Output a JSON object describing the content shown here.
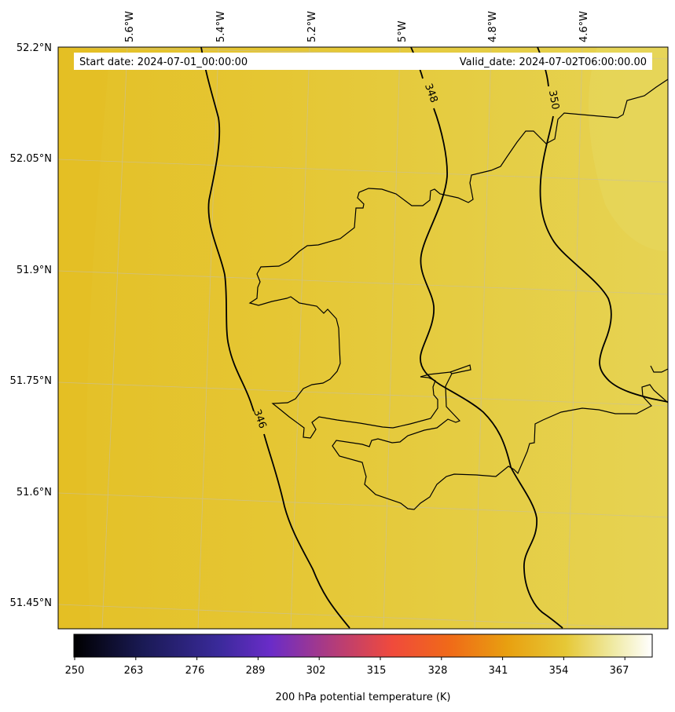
{
  "header": {
    "start_date": "Start date: 2024-07-01_00:00:00",
    "valid_date": "Valid_date: 2024-07-02T06:00:00.00"
  },
  "axes": {
    "lon_ticks": [
      "5.6°W",
      "5.4°W",
      "5.2°W",
      "5°W",
      "4.8°W",
      "4.6°W"
    ],
    "lat_ticks": [
      "52.2°N",
      "52.05°N",
      "51.9°N",
      "51.75°N",
      "51.6°N",
      "51.45°N"
    ]
  },
  "contours": {
    "labels": [
      "346",
      "348",
      "350"
    ]
  },
  "colorbar": {
    "label": "200 hPa potential temperature (K)",
    "ticks": [
      "250",
      "263",
      "276",
      "289",
      "302",
      "315",
      "328",
      "341",
      "354",
      "367"
    ],
    "range": [
      250,
      373
    ],
    "colormap": "CMRmap"
  },
  "field": {
    "fill_color_west": "#e6c22a",
    "fill_color_east": "#e5d456",
    "contour_color": "#000000",
    "coastline_color": "#000000",
    "gridline_color": "#c8c8c8"
  }
}
